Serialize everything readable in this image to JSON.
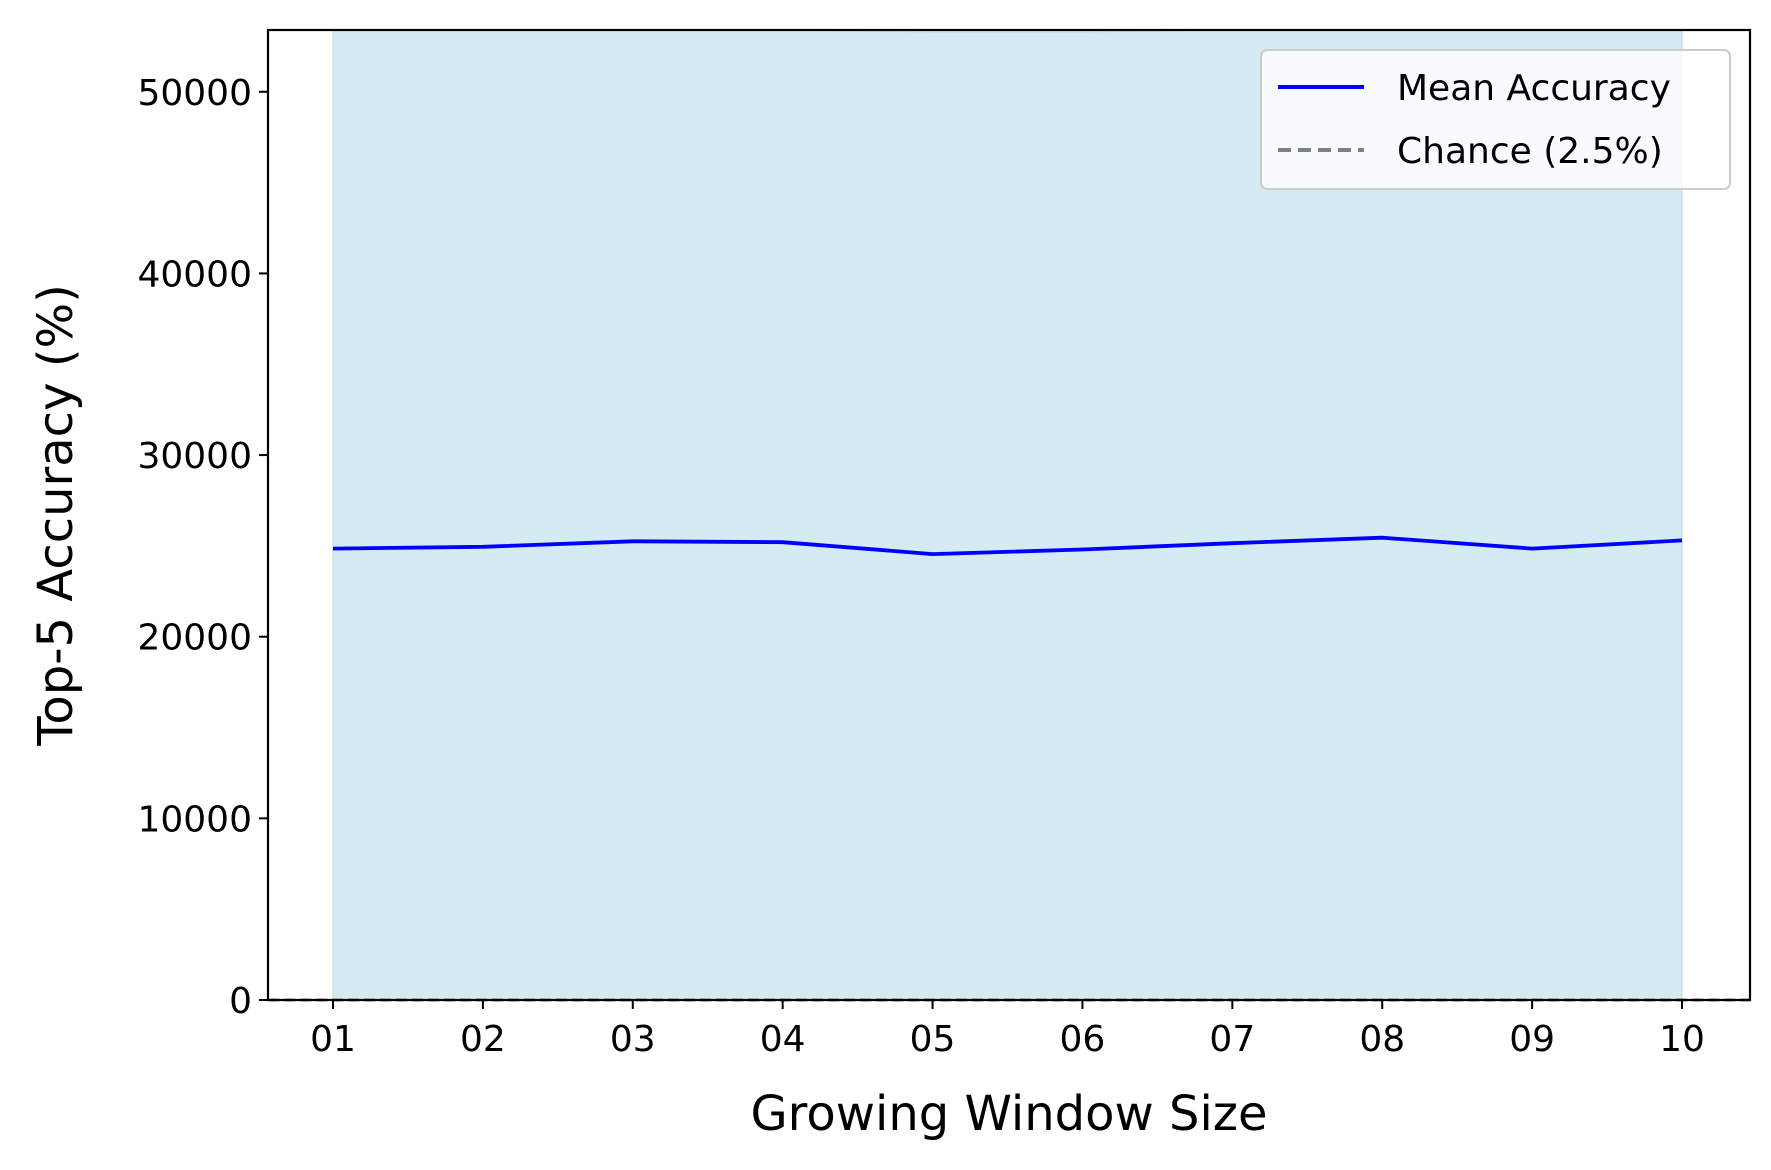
{
  "chart_data": {
    "type": "line",
    "title": "",
    "xlabel": "Growing Window Size",
    "ylabel": "Top-5 Accuracy (%)",
    "categories": [
      "01",
      "02",
      "03",
      "04",
      "05",
      "06",
      "07",
      "08",
      "09",
      "10"
    ],
    "ylim": [
      0,
      53400
    ],
    "yticks": [
      0,
      10000,
      20000,
      30000,
      40000,
      50000
    ],
    "grid": false,
    "legend_position": "top-right",
    "series": [
      {
        "name": "Mean Accuracy",
        "style": "solid",
        "color": "#0000ff",
        "values": [
          24850,
          24950,
          25250,
          25200,
          24550,
          24800,
          25150,
          25450,
          24850,
          25300
        ]
      },
      {
        "name": "Chance (2.5%)",
        "style": "dashed",
        "color": "#808080",
        "values": [
          2.5,
          2.5,
          2.5,
          2.5,
          2.5,
          2.5,
          2.5,
          2.5,
          2.5,
          2.5
        ]
      }
    ],
    "band": {
      "color": "#add8e6",
      "lower": [
        0,
        0,
        0,
        0,
        0,
        0,
        0,
        0,
        0,
        0
      ],
      "upper": [
        53400,
        53400,
        53400,
        53400,
        53300,
        53300,
        53400,
        53400,
        53400,
        53400
      ]
    }
  }
}
